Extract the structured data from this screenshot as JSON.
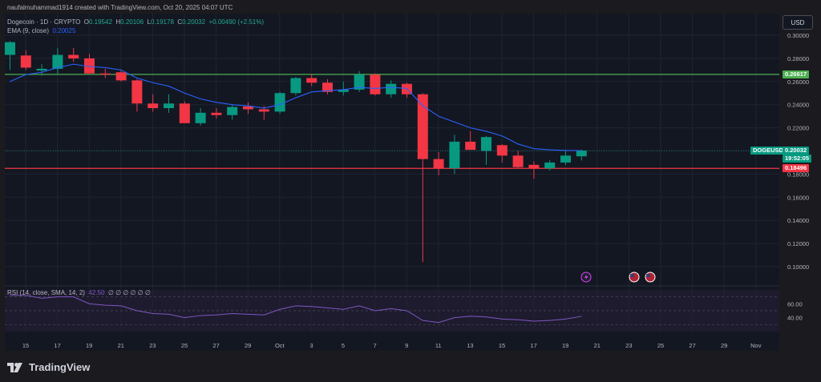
{
  "header": {
    "credit": "naufalmuhammad1914 created with TradingView.com, Oct 20, 2025 04:07 UTC",
    "symbol_line": "Dogecoin · 1D · CRYPTO",
    "o_label": "O",
    "o_value": "0.19542",
    "h_label": "H",
    "h_value": "0.20106",
    "l_label": "L",
    "l_value": "0.19178",
    "c_label": "C",
    "c_value": "0.20032",
    "change": "+0.00490 (+2.51%)",
    "ema_label": "EMA (9, close)",
    "ema_value": "0.20025"
  },
  "currency_button": "USD",
  "symbol_tag": "DOGEUSD",
  "price_tag": "0.20032",
  "countdown": "19:52:05",
  "green_line_label": "0.26617",
  "red_line_label": "0.18496",
  "rsi": {
    "label": "RSI (14, close, SMA, 14, 2)",
    "value": "42.50",
    "placeholders": "∅ ∅ ∅ ∅ ∅ ∅",
    "ticks": [
      "60.00",
      "40.00"
    ]
  },
  "logo_text": "TradingView",
  "colors": {
    "up": "#089981",
    "down": "#f23645",
    "ema": "#2962ff",
    "resistance": "#4caf50",
    "support": "#f23645",
    "rsi": "#7e57c2"
  },
  "chart_data": {
    "type": "candlestick",
    "y_ticks": [
      "0.30000",
      "0.28000",
      "0.26000",
      "0.24000",
      "0.22000",
      "0.20000",
      "0.18000",
      "0.16000",
      "0.14000",
      "0.12000",
      "0.10000"
    ],
    "ylim": [
      0.088,
      0.308
    ],
    "x_ticks": [
      "15",
      "17",
      "19",
      "21",
      "23",
      "25",
      "27",
      "29",
      "Oct",
      "3",
      "5",
      "7",
      "9",
      "11",
      "13",
      "15",
      "17",
      "19",
      "21",
      "23",
      "25",
      "27",
      "29",
      "Nov"
    ],
    "horizontal_lines": [
      0.26617,
      0.18496
    ],
    "candles": [
      {
        "d": "Sep 14",
        "o": 0.283,
        "h": 0.295,
        "l": 0.27,
        "c": 0.294
      },
      {
        "d": "Sep 15",
        "o": 0.2825,
        "h": 0.287,
        "l": 0.27,
        "c": 0.272
      },
      {
        "d": "Sep 16",
        "o": 0.2695,
        "h": 0.275,
        "l": 0.265,
        "c": 0.271
      },
      {
        "d": "Sep 17",
        "o": 0.271,
        "h": 0.289,
        "l": 0.266,
        "c": 0.283
      },
      {
        "d": "Sep 18",
        "o": 0.283,
        "h": 0.289,
        "l": 0.277,
        "c": 0.28
      },
      {
        "d": "Sep 19",
        "o": 0.28,
        "h": 0.284,
        "l": 0.266,
        "c": 0.267
      },
      {
        "d": "Sep 20",
        "o": 0.267,
        "h": 0.271,
        "l": 0.263,
        "c": 0.266
      },
      {
        "d": "Sep 21",
        "o": 0.268,
        "h": 0.27,
        "l": 0.26,
        "c": 0.261
      },
      {
        "d": "Sep 22",
        "o": 0.261,
        "h": 0.262,
        "l": 0.234,
        "c": 0.241
      },
      {
        "d": "Sep 23",
        "o": 0.241,
        "h": 0.249,
        "l": 0.234,
        "c": 0.237
      },
      {
        "d": "Sep 24",
        "o": 0.237,
        "h": 0.249,
        "l": 0.233,
        "c": 0.241
      },
      {
        "d": "Sep 25",
        "o": 0.241,
        "h": 0.243,
        "l": 0.224,
        "c": 0.224
      },
      {
        "d": "Sep 26",
        "o": 0.224,
        "h": 0.237,
        "l": 0.222,
        "c": 0.233
      },
      {
        "d": "Sep 27",
        "o": 0.233,
        "h": 0.237,
        "l": 0.228,
        "c": 0.231
      },
      {
        "d": "Sep 28",
        "o": 0.231,
        "h": 0.24,
        "l": 0.227,
        "c": 0.238
      },
      {
        "d": "Sep 29",
        "o": 0.2385,
        "h": 0.242,
        "l": 0.232,
        "c": 0.236
      },
      {
        "d": "Sep 30",
        "o": 0.236,
        "h": 0.239,
        "l": 0.227,
        "c": 0.234
      },
      {
        "d": "Oct 1",
        "o": 0.234,
        "h": 0.251,
        "l": 0.232,
        "c": 0.25
      },
      {
        "d": "Oct 2",
        "o": 0.25,
        "h": 0.264,
        "l": 0.248,
        "c": 0.263
      },
      {
        "d": "Oct 3",
        "o": 0.263,
        "h": 0.266,
        "l": 0.256,
        "c": 0.259
      },
      {
        "d": "Oct 4",
        "o": 0.259,
        "h": 0.262,
        "l": 0.249,
        "c": 0.251
      },
      {
        "d": "Oct 5",
        "o": 0.251,
        "h": 0.26,
        "l": 0.248,
        "c": 0.253
      },
      {
        "d": "Oct 6",
        "o": 0.253,
        "h": 0.269,
        "l": 0.251,
        "c": 0.266
      },
      {
        "d": "Oct 7",
        "o": 0.266,
        "h": 0.267,
        "l": 0.248,
        "c": 0.249
      },
      {
        "d": "Oct 8",
        "o": 0.249,
        "h": 0.261,
        "l": 0.246,
        "c": 0.258
      },
      {
        "d": "Oct 9",
        "o": 0.258,
        "h": 0.259,
        "l": 0.246,
        "c": 0.249
      },
      {
        "d": "Oct 10",
        "o": 0.249,
        "h": 0.25,
        "l": 0.104,
        "c": 0.193
      },
      {
        "d": "Oct 11",
        "o": 0.193,
        "h": 0.199,
        "l": 0.179,
        "c": 0.185
      },
      {
        "d": "Oct 12",
        "o": 0.185,
        "h": 0.214,
        "l": 0.18,
        "c": 0.208
      },
      {
        "d": "Oct 13",
        "o": 0.208,
        "h": 0.217,
        "l": 0.201,
        "c": 0.201
      },
      {
        "d": "Oct 14",
        "o": 0.2,
        "h": 0.213,
        "l": 0.188,
        "c": 0.212
      },
      {
        "d": "Oct 15",
        "o": 0.205,
        "h": 0.206,
        "l": 0.19,
        "c": 0.196
      },
      {
        "d": "Oct 16",
        "o": 0.196,
        "h": 0.2,
        "l": 0.185,
        "c": 0.186
      },
      {
        "d": "Oct 17",
        "o": 0.188,
        "h": 0.191,
        "l": 0.176,
        "c": 0.185
      },
      {
        "d": "Oct 18",
        "o": 0.185,
        "h": 0.192,
        "l": 0.183,
        "c": 0.19
      },
      {
        "d": "Oct 19",
        "o": 0.19,
        "h": 0.2,
        "l": 0.188,
        "c": 0.196
      },
      {
        "d": "Oct 20",
        "o": 0.1954,
        "h": 0.2011,
        "l": 0.1918,
        "c": 0.2003
      }
    ],
    "ema": [
      0.26,
      0.266,
      0.268,
      0.272,
      0.275,
      0.273,
      0.272,
      0.27,
      0.263,
      0.259,
      0.256,
      0.25,
      0.245,
      0.242,
      0.24,
      0.239,
      0.237,
      0.24,
      0.246,
      0.251,
      0.252,
      0.253,
      0.255,
      0.254,
      0.255,
      0.254,
      0.239,
      0.23,
      0.225,
      0.22,
      0.217,
      0.213,
      0.206,
      0.202,
      0.201,
      0.2005,
      0.2003
    ],
    "rsi_ylim": [
      20,
      80
    ],
    "rsi_values": [
      72,
      72,
      68,
      70,
      70,
      60,
      58,
      57,
      50,
      46,
      45,
      40,
      43,
      44,
      46,
      45,
      44,
      52,
      57,
      56,
      54,
      52,
      57,
      50,
      53,
      50,
      36,
      33,
      40,
      42,
      41,
      38,
      37,
      35,
      36,
      38,
      42
    ]
  }
}
